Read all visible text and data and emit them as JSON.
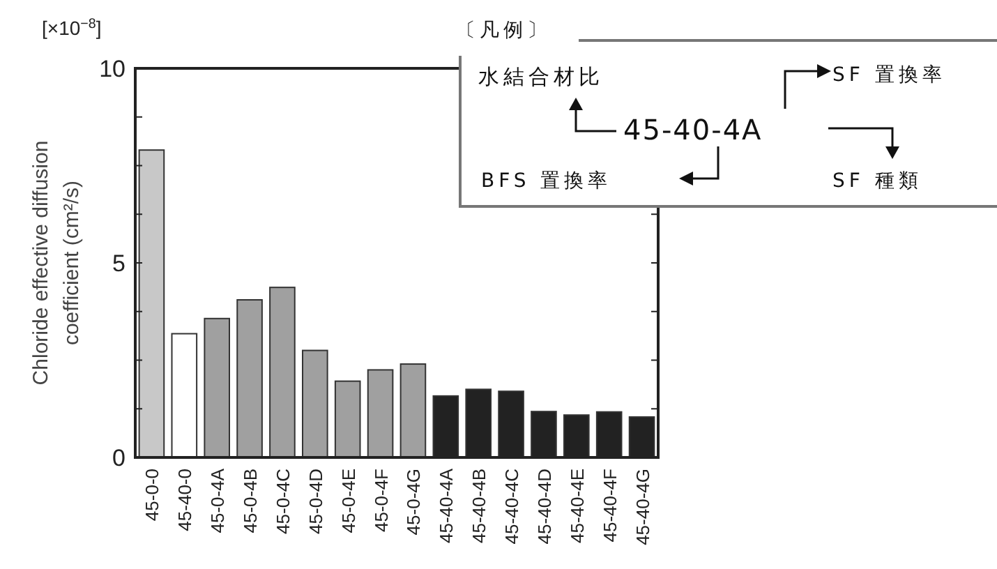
{
  "chart_data": {
    "type": "bar",
    "ylabel": "Chloride effective diffusion coefficient  (cm²/s)",
    "categories": [
      "45-0-0",
      "45-40-0",
      "45-0-4A",
      "45-0-4B",
      "45-0-4C",
      "45-0-4D",
      "45-0-4E",
      "45-0-4F",
      "45-0-4G",
      "45-40-4A",
      "45-40-4B",
      "45-40-4C",
      "45-40-4D",
      "45-40-4E",
      "45-40-4F",
      "45-40-4G"
    ],
    "values": [
      7.9,
      3.18,
      3.57,
      4.05,
      4.37,
      2.75,
      1.96,
      2.25,
      2.4,
      1.58,
      1.75,
      1.7,
      1.18,
      1.09,
      1.17,
      1.04
    ],
    "colors": [
      "#c8c8c8",
      "#ffffff",
      "#a0a0a0",
      "#a0a0a0",
      "#a0a0a0",
      "#a0a0a0",
      "#a0a0a0",
      "#a0a0a0",
      "#a0a0a0",
      "#222222",
      "#222222",
      "#222222",
      "#222222",
      "#222222",
      "#222222",
      "#222222"
    ],
    "ylim": [
      0,
      10
    ],
    "yticks": [
      0,
      {
        "value": 1.25,
        "label": null
      },
      {
        "value": 2.5,
        "label": null
      },
      {
        "value": 3.75,
        "label": null
      },
      5,
      {
        "value": 6.25,
        "label": null
      },
      {
        "value": 7.5,
        "label": null
      },
      {
        "value": 8.75,
        "label": null
      },
      10
    ],
    "grid": false,
    "annotations": [
      "[×10$^{−8}$]",
      "〔凡例〕",
      "水結合材比",
      "45-40-4A",
      "SF 置換率",
      "BFS 置換率",
      "SF 種類"
    ]
  }
}
